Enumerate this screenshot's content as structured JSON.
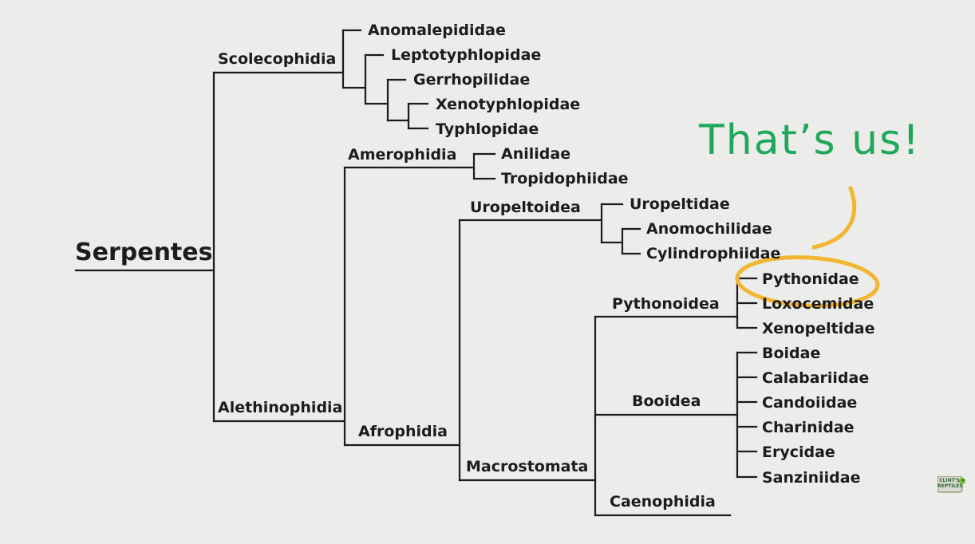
{
  "diagram": {
    "root": "Serpentes",
    "clades": {
      "scolecophidia": "Scolecophidia",
      "alethinophidia": "Alethinophidia",
      "amerophidia": "Amerophidia",
      "afrophidia": "Afrophidia",
      "uropeltoidea": "Uropeltoidea",
      "macrostomata": "Macrostomata",
      "pythonoidea": "Pythonoidea",
      "booidea": "Booidea",
      "caenophidia": "Caenophidia"
    },
    "families": {
      "anomalepididae": "Anomalepididae",
      "leptotyphlopidae": "Leptotyphlopidae",
      "gerrhopilidae": "Gerrhopilidae",
      "xenotyphlopidae": "Xenotyphlopidae",
      "typhlopidae": "Typhlopidae",
      "anilidae": "Anilidae",
      "tropidophiidae": "Tropidophiidae",
      "uropeltidae": "Uropeltidae",
      "anomochilidae": "Anomochilidae",
      "cylindrophiidae": "Cylindrophiidae",
      "pythonidae": "Pythonidae",
      "loxocemidae": "Loxocemidae",
      "xenopeltidae": "Xenopeltidae",
      "boidae": "Boidae",
      "calabariidae": "Calabariidae",
      "candoiidae": "Candoiidae",
      "charinidae": "Charinidae",
      "erycidae": "Erycidae",
      "sanziniidae": "Sanziniidae"
    }
  },
  "annotation": {
    "text": "That’s us!",
    "color": "#1fa85a",
    "highlight_color": "#f2b630"
  },
  "logo": {
    "text": "CLINT'S REPTILES"
  },
  "colors": {
    "line": "#1c1c1c",
    "background": "#ececeb"
  }
}
